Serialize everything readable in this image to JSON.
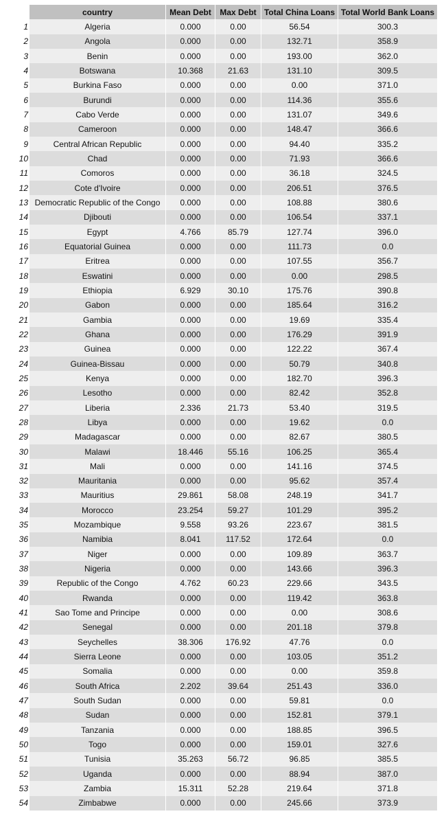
{
  "columns": [
    "country",
    "Mean Debt",
    "Max Debt",
    "Total China Loans",
    "Total World Bank Loans"
  ],
  "rows": [
    [
      "1",
      "Algeria",
      "0.000",
      "0.00",
      "56.54",
      "300.3"
    ],
    [
      "2",
      "Angola",
      "0.000",
      "0.00",
      "132.71",
      "358.9"
    ],
    [
      "3",
      "Benin",
      "0.000",
      "0.00",
      "193.00",
      "362.0"
    ],
    [
      "4",
      "Botswana",
      "10.368",
      "21.63",
      "131.10",
      "309.5"
    ],
    [
      "5",
      "Burkina Faso",
      "0.000",
      "0.00",
      "0.00",
      "371.0"
    ],
    [
      "6",
      "Burundi",
      "0.000",
      "0.00",
      "114.36",
      "355.6"
    ],
    [
      "7",
      "Cabo Verde",
      "0.000",
      "0.00",
      "131.07",
      "349.6"
    ],
    [
      "8",
      "Cameroon",
      "0.000",
      "0.00",
      "148.47",
      "366.6"
    ],
    [
      "9",
      "Central African Republic",
      "0.000",
      "0.00",
      "94.40",
      "335.2"
    ],
    [
      "10",
      "Chad",
      "0.000",
      "0.00",
      "71.93",
      "366.6"
    ],
    [
      "11",
      "Comoros",
      "0.000",
      "0.00",
      "36.18",
      "324.5"
    ],
    [
      "12",
      "Cote d'Ivoire",
      "0.000",
      "0.00",
      "206.51",
      "376.5"
    ],
    [
      "13",
      "Democratic Republic of the Congo",
      "0.000",
      "0.00",
      "108.88",
      "380.6"
    ],
    [
      "14",
      "Djibouti",
      "0.000",
      "0.00",
      "106.54",
      "337.1"
    ],
    [
      "15",
      "Egypt",
      "4.766",
      "85.79",
      "127.74",
      "396.0"
    ],
    [
      "16",
      "Equatorial Guinea",
      "0.000",
      "0.00",
      "111.73",
      "0.0"
    ],
    [
      "17",
      "Eritrea",
      "0.000",
      "0.00",
      "107.55",
      "356.7"
    ],
    [
      "18",
      "Eswatini",
      "0.000",
      "0.00",
      "0.00",
      "298.5"
    ],
    [
      "19",
      "Ethiopia",
      "6.929",
      "30.10",
      "175.76",
      "390.8"
    ],
    [
      "20",
      "Gabon",
      "0.000",
      "0.00",
      "185.64",
      "316.2"
    ],
    [
      "21",
      "Gambia",
      "0.000",
      "0.00",
      "19.69",
      "335.4"
    ],
    [
      "22",
      "Ghana",
      "0.000",
      "0.00",
      "176.29",
      "391.9"
    ],
    [
      "23",
      "Guinea",
      "0.000",
      "0.00",
      "122.22",
      "367.4"
    ],
    [
      "24",
      "Guinea-Bissau",
      "0.000",
      "0.00",
      "50.79",
      "340.8"
    ],
    [
      "25",
      "Kenya",
      "0.000",
      "0.00",
      "182.70",
      "396.3"
    ],
    [
      "26",
      "Lesotho",
      "0.000",
      "0.00",
      "82.42",
      "352.8"
    ],
    [
      "27",
      "Liberia",
      "2.336",
      "21.73",
      "53.40",
      "319.5"
    ],
    [
      "28",
      "Libya",
      "0.000",
      "0.00",
      "19.62",
      "0.0"
    ],
    [
      "29",
      "Madagascar",
      "0.000",
      "0.00",
      "82.67",
      "380.5"
    ],
    [
      "30",
      "Malawi",
      "18.446",
      "55.16",
      "106.25",
      "365.4"
    ],
    [
      "31",
      "Mali",
      "0.000",
      "0.00",
      "141.16",
      "374.5"
    ],
    [
      "32",
      "Mauritania",
      "0.000",
      "0.00",
      "95.62",
      "357.4"
    ],
    [
      "33",
      "Mauritius",
      "29.861",
      "58.08",
      "248.19",
      "341.7"
    ],
    [
      "34",
      "Morocco",
      "23.254",
      "59.27",
      "101.29",
      "395.2"
    ],
    [
      "35",
      "Mozambique",
      "9.558",
      "93.26",
      "223.67",
      "381.5"
    ],
    [
      "36",
      "Namibia",
      "8.041",
      "117.52",
      "172.64",
      "0.0"
    ],
    [
      "37",
      "Niger",
      "0.000",
      "0.00",
      "109.89",
      "363.7"
    ],
    [
      "38",
      "Nigeria",
      "0.000",
      "0.00",
      "143.66",
      "396.3"
    ],
    [
      "39",
      "Republic of the Congo",
      "4.762",
      "60.23",
      "229.66",
      "343.5"
    ],
    [
      "40",
      "Rwanda",
      "0.000",
      "0.00",
      "119.42",
      "363.8"
    ],
    [
      "41",
      "Sao Tome and Principe",
      "0.000",
      "0.00",
      "0.00",
      "308.6"
    ],
    [
      "42",
      "Senegal",
      "0.000",
      "0.00",
      "201.18",
      "379.8"
    ],
    [
      "43",
      "Seychelles",
      "38.306",
      "176.92",
      "47.76",
      "0.0"
    ],
    [
      "44",
      "Sierra Leone",
      "0.000",
      "0.00",
      "103.05",
      "351.2"
    ],
    [
      "45",
      "Somalia",
      "0.000",
      "0.00",
      "0.00",
      "359.8"
    ],
    [
      "46",
      "South Africa",
      "2.202",
      "39.64",
      "251.43",
      "336.0"
    ],
    [
      "47",
      "South Sudan",
      "0.000",
      "0.00",
      "59.81",
      "0.0"
    ],
    [
      "48",
      "Sudan",
      "0.000",
      "0.00",
      "152.81",
      "379.1"
    ],
    [
      "49",
      "Tanzania",
      "0.000",
      "0.00",
      "188.85",
      "396.5"
    ],
    [
      "50",
      "Togo",
      "0.000",
      "0.00",
      "159.01",
      "327.6"
    ],
    [
      "51",
      "Tunisia",
      "35.263",
      "56.72",
      "96.85",
      "385.5"
    ],
    [
      "52",
      "Uganda",
      "0.000",
      "0.00",
      "88.94",
      "387.0"
    ],
    [
      "53",
      "Zambia",
      "15.311",
      "52.28",
      "219.64",
      "371.8"
    ],
    [
      "54",
      "Zimbabwe",
      "0.000",
      "0.00",
      "245.66",
      "373.9"
    ]
  ]
}
